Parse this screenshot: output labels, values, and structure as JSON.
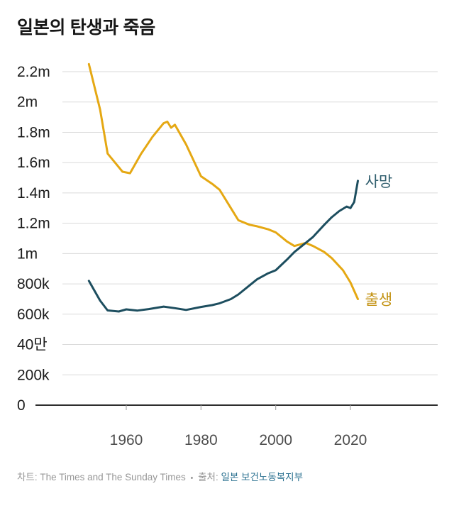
{
  "title": "일본의 탄생과 죽음",
  "footer": {
    "chart_label": "차트:",
    "chart_attribution": "The Times and The Sunday Times",
    "separator": "•",
    "source_label": "출처:",
    "source_name": "일본 보건노동복지부",
    "source_color": "#2a7090",
    "text_color": "#979797"
  },
  "chart_data": {
    "type": "line",
    "title": "일본의 탄생과 죽음",
    "grid": true,
    "legend_position": "line-end-labels",
    "x_range": [
      1950,
      2022
    ],
    "y_range": [
      0,
      2300000
    ],
    "x_ticks": [
      "1960",
      "1980",
      "2000",
      "2020"
    ],
    "y_ticks": [
      {
        "value": 2200000,
        "label": "2.2m"
      },
      {
        "value": 2000000,
        "label": "2m"
      },
      {
        "value": 1800000,
        "label": "1.8m"
      },
      {
        "value": 1600000,
        "label": "1.6m"
      },
      {
        "value": 1400000,
        "label": "1.4m"
      },
      {
        "value": 1200000,
        "label": "1.2m"
      },
      {
        "value": 1000000,
        "label": "1m"
      },
      {
        "value": 800000,
        "label": "800k"
      },
      {
        "value": 600000,
        "label": "600k"
      },
      {
        "value": 400000,
        "label": "40만"
      },
      {
        "value": 200000,
        "label": "200k"
      },
      {
        "value": 0,
        "label": "0"
      }
    ],
    "series": [
      {
        "name": "출생",
        "color": "#e5a813",
        "label_color": "#c29110",
        "points": [
          [
            1950,
            2250000
          ],
          [
            1953,
            1950000
          ],
          [
            1955,
            1660000
          ],
          [
            1957,
            1600000
          ],
          [
            1959,
            1540000
          ],
          [
            1961,
            1530000
          ],
          [
            1964,
            1660000
          ],
          [
            1967,
            1770000
          ],
          [
            1970,
            1860000
          ],
          [
            1971,
            1870000
          ],
          [
            1972,
            1830000
          ],
          [
            1973,
            1850000
          ],
          [
            1976,
            1720000
          ],
          [
            1980,
            1510000
          ],
          [
            1983,
            1460000
          ],
          [
            1985,
            1420000
          ],
          [
            1988,
            1300000
          ],
          [
            1990,
            1220000
          ],
          [
            1993,
            1190000
          ],
          [
            1995,
            1180000
          ],
          [
            1998,
            1160000
          ],
          [
            2000,
            1140000
          ],
          [
            2003,
            1080000
          ],
          [
            2005,
            1050000
          ],
          [
            2008,
            1070000
          ],
          [
            2010,
            1050000
          ],
          [
            2013,
            1010000
          ],
          [
            2015,
            970000
          ],
          [
            2018,
            890000
          ],
          [
            2020,
            810000
          ],
          [
            2022,
            700000
          ]
        ]
      },
      {
        "name": "사망",
        "color": "#1d4e5f",
        "label_color": "#32606f",
        "points": [
          [
            1950,
            820000
          ],
          [
            1953,
            690000
          ],
          [
            1955,
            625000
          ],
          [
            1958,
            618000
          ],
          [
            1960,
            632000
          ],
          [
            1963,
            624000
          ],
          [
            1966,
            634000
          ],
          [
            1970,
            650000
          ],
          [
            1973,
            640000
          ],
          [
            1976,
            628000
          ],
          [
            1980,
            648000
          ],
          [
            1983,
            660000
          ],
          [
            1985,
            672000
          ],
          [
            1988,
            700000
          ],
          [
            1990,
            730000
          ],
          [
            1993,
            790000
          ],
          [
            1995,
            830000
          ],
          [
            1998,
            870000
          ],
          [
            2000,
            890000
          ],
          [
            2003,
            960000
          ],
          [
            2005,
            1010000
          ],
          [
            2008,
            1070000
          ],
          [
            2010,
            1110000
          ],
          [
            2013,
            1190000
          ],
          [
            2015,
            1240000
          ],
          [
            2017,
            1280000
          ],
          [
            2019,
            1310000
          ],
          [
            2020,
            1300000
          ],
          [
            2021,
            1340000
          ],
          [
            2022,
            1480000
          ]
        ]
      }
    ]
  }
}
